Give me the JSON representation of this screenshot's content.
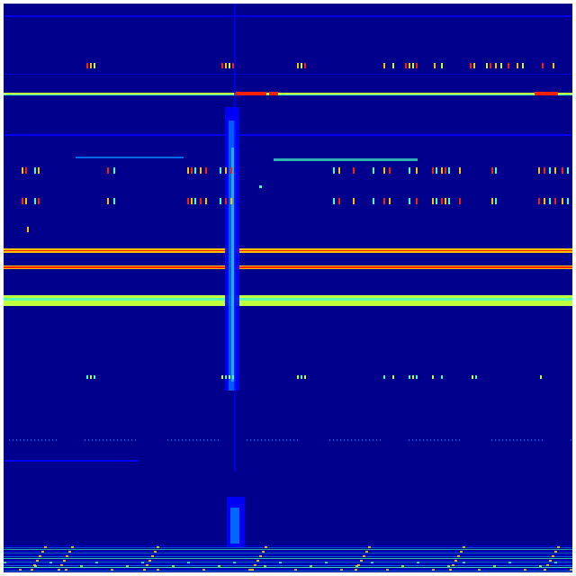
{
  "image": {
    "kind": "spectrogram-waterfall",
    "colormap": "jet",
    "colors": {
      "background": "#00008c",
      "border": "#ffffff",
      "low": "#0000ff",
      "mid_low": "#0080ff",
      "mid": "#40ffc0",
      "mid_high": "#c0ff40",
      "high": "#ffc000",
      "peak": "#ff2000"
    }
  }
}
